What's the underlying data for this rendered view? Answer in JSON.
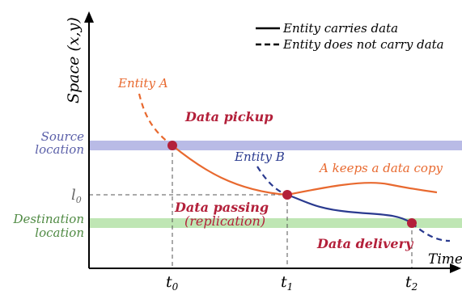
{
  "legend": {
    "solid_label": "Entity carries data",
    "dashed_label": "Entity does not carry data"
  },
  "axes": {
    "y_label": "Space (x,y)",
    "x_label": "Time",
    "ticks": {
      "t0": "t",
      "t0_sub": "0",
      "t1": "t",
      "t1_sub": "1",
      "t2": "t",
      "t2_sub": "2"
    },
    "l0": "l",
    "l0_sub": "0"
  },
  "bands": {
    "source_line1": "Source",
    "source_line2": "location",
    "destination_line1": "Destination",
    "destination_line2": "location"
  },
  "entities": {
    "a_label": "Entity A",
    "b_label": "Entity B",
    "a_copy_label": "A keeps a data copy"
  },
  "events": {
    "pickup": "Data pickup",
    "passing_line1": "Data passing",
    "passing_line2": "(replication)",
    "delivery": "Data delivery"
  },
  "colors": {
    "entity_a": "#e8692f",
    "entity_b": "#2a3a8f",
    "event": "#b3203a",
    "source_band": "#b9bbe6",
    "source_text": "#5a5fa8",
    "destination_band": "#bfe6b4",
    "destination_text": "#4f8a43",
    "axis": "#000000",
    "guide": "#555555"
  }
}
